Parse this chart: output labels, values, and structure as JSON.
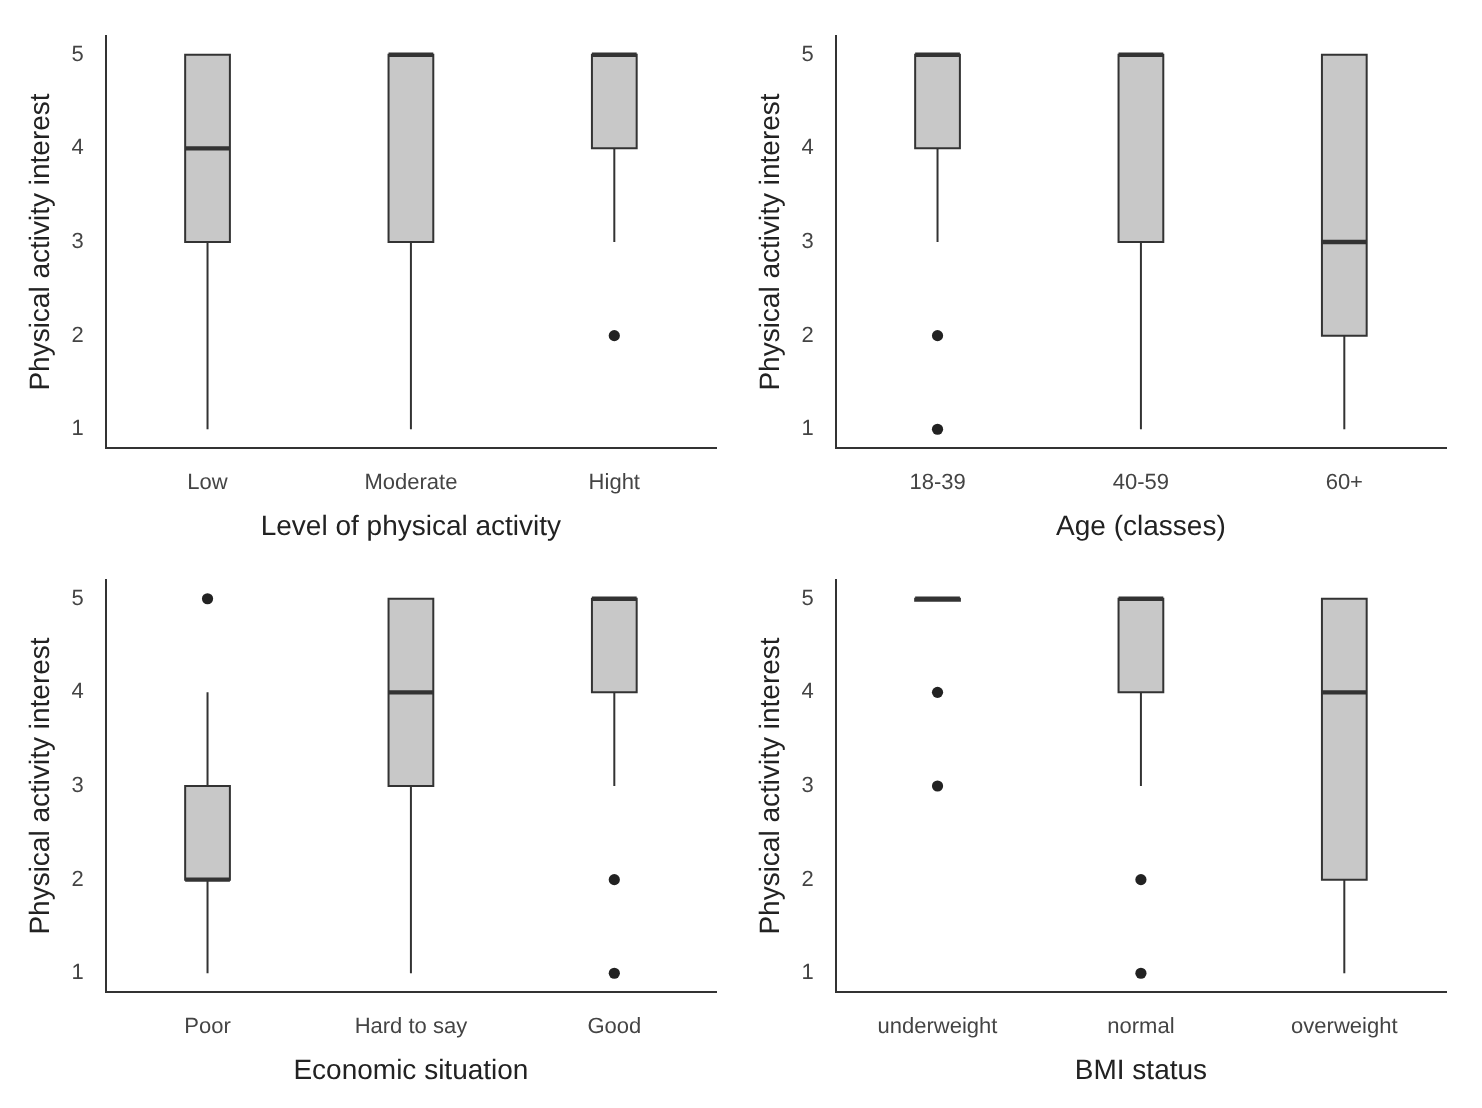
{
  "chart_data": [
    {
      "type": "box",
      "xlabel": "Level of physical activity",
      "ylabel": "Physical activity interest",
      "categories": [
        "Low",
        "Moderate",
        "Hight"
      ],
      "color": "#c8c8c8",
      "ylim": [
        0.8,
        5.2
      ],
      "yticks": [
        1,
        2,
        3,
        4,
        5
      ],
      "grid": false,
      "boxes": [
        {
          "low": 1,
          "q1": 3,
          "median": 4,
          "q3": 5,
          "high": 5
        },
        {
          "low": 1,
          "q1": 3,
          "median": 5,
          "q3": 5,
          "high": 5
        },
        {
          "low": 3,
          "q1": 4,
          "median": 5,
          "q3": 5,
          "high": 5,
          "outliers": [
            2
          ]
        }
      ]
    },
    {
      "type": "box",
      "xlabel": "Age (classes)",
      "ylabel": "Physical activity interest",
      "categories": [
        "18-39",
        "40-59",
        "60+"
      ],
      "color": "#c8c8c8",
      "ylim": [
        0.8,
        5.2
      ],
      "yticks": [
        1,
        2,
        3,
        4,
        5
      ],
      "grid": false,
      "boxes": [
        {
          "low": 3,
          "q1": 4,
          "median": 5,
          "q3": 5,
          "high": 5,
          "outliers": [
            2,
            1
          ]
        },
        {
          "low": 1,
          "q1": 3,
          "median": 5,
          "q3": 5,
          "high": 5
        },
        {
          "low": 1,
          "q1": 2,
          "median": 3,
          "q3": 5,
          "high": 5
        }
      ]
    },
    {
      "type": "box",
      "xlabel": "Economic situation",
      "ylabel": "Physical activity interest",
      "categories": [
        "Poor",
        "Hard to say",
        "Good"
      ],
      "color": "#c8c8c8",
      "ylim": [
        0.8,
        5.2
      ],
      "yticks": [
        1,
        2,
        3,
        4,
        5
      ],
      "grid": false,
      "boxes": [
        {
          "low": 1,
          "q1": 2,
          "median": 2,
          "q3": 3,
          "high": 4,
          "outliers": [
            5
          ]
        },
        {
          "low": 1,
          "q1": 3,
          "median": 4,
          "q3": 5,
          "high": 5
        },
        {
          "low": 3,
          "q1": 4,
          "median": 5,
          "q3": 5,
          "high": 5,
          "outliers": [
            2,
            1
          ]
        }
      ]
    },
    {
      "type": "box",
      "xlabel": "BMI status",
      "ylabel": "Physical activity interest",
      "categories": [
        "underweight",
        "normal",
        "overweight"
      ],
      "color": "#c8c8c8",
      "ylim": [
        0.8,
        5.2
      ],
      "yticks": [
        1,
        2,
        3,
        4,
        5
      ],
      "grid": false,
      "boxes": [
        {
          "low": 5,
          "q1": 5,
          "median": 5,
          "q3": 5,
          "high": 5,
          "outliers": [
            4,
            3
          ]
        },
        {
          "low": 3,
          "q1": 4,
          "median": 5,
          "q3": 5,
          "high": 5,
          "outliers": [
            2,
            1
          ]
        },
        {
          "low": 1,
          "q1": 2,
          "median": 4,
          "q3": 5,
          "high": 5
        }
      ]
    }
  ]
}
